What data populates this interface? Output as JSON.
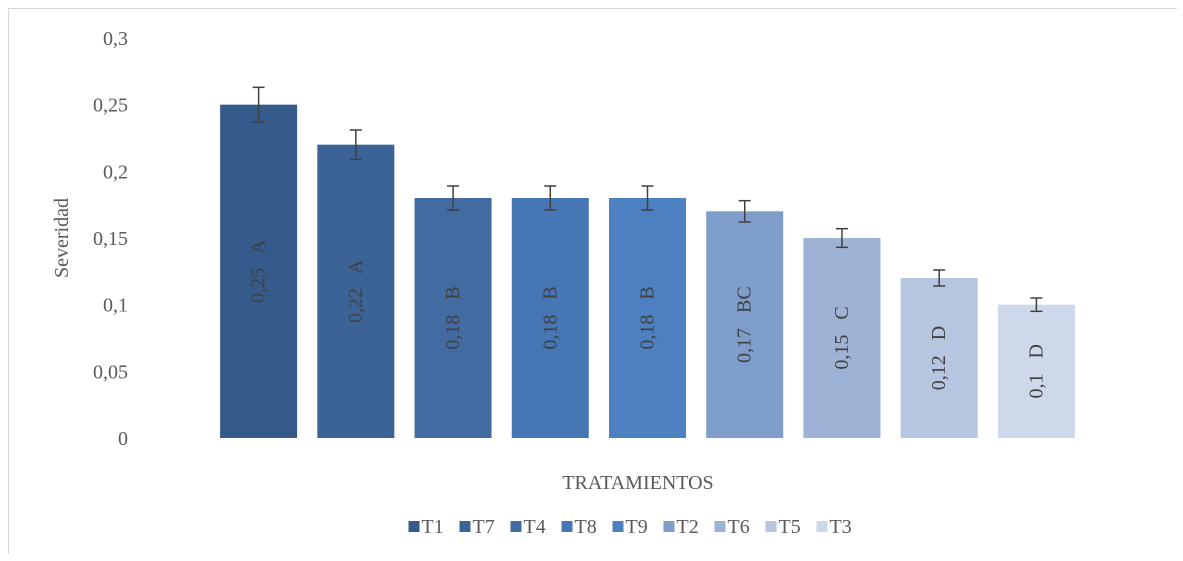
{
  "chart_data": {
    "type": "bar",
    "categories": [
      "T1",
      "T7",
      "T4",
      "T8",
      "T9",
      "T2",
      "T6",
      "T5",
      "T3"
    ],
    "values": [
      0.25,
      0.22,
      0.18,
      0.18,
      0.18,
      0.17,
      0.15,
      0.12,
      0.1
    ],
    "errors": [
      0.013,
      0.011,
      0.009,
      0.009,
      0.009,
      0.008,
      0.007,
      0.006,
      0.005
    ],
    "data_labels": [
      "0,25   A",
      "0,22   A",
      "0,18   B",
      "0,18   B",
      "0,18   B",
      "0,17   BC",
      "0,15   C",
      "0,12   D",
      "0,1   D"
    ],
    "colors": [
      "#355B8D",
      "#3C6396",
      "#416BA1",
      "#4676B3",
      "#4D80C0",
      "#7F9DCB",
      "#9EB2D5",
      "#B6C5E0",
      "#CDD8EA"
    ],
    "ylabel": "Severidad",
    "xlabel": "TRATAMIENTOS",
    "ylim": [
      0,
      0.3
    ],
    "yticks": [
      0,
      0.05,
      0.1,
      0.15,
      0.2,
      0.25,
      0.3
    ],
    "ytick_labels": [
      "0",
      "0,05",
      "0,1",
      "0,15",
      "0,2",
      "0,25",
      "0,3"
    ],
    "grid": false,
    "legend": {
      "position": "bottom",
      "entries": [
        "T1",
        "T7",
        "T4",
        "T8",
        "T9",
        "T2",
        "T6",
        "T5",
        "T3"
      ]
    }
  }
}
